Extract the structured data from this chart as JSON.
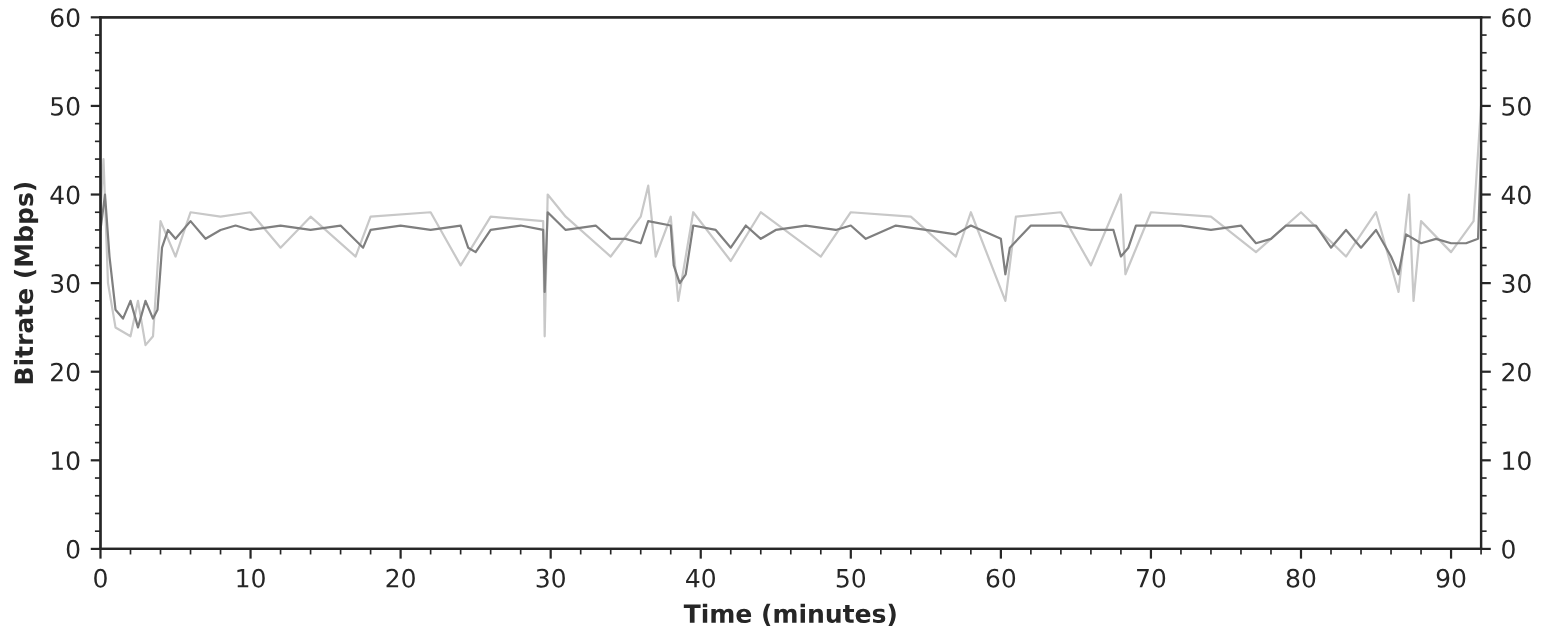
{
  "chart_data": {
    "type": "line",
    "xlabel": "Time (minutes)",
    "ylabel": "Bitrate (Mbps)",
    "xlim": [
      0,
      92
    ],
    "xticks": [
      0,
      10,
      20,
      30,
      40,
      50,
      60,
      70,
      80,
      90
    ],
    "ylim": [
      0,
      60
    ],
    "yticks": [
      0,
      10,
      20,
      30,
      40,
      50,
      60
    ],
    "y2lim": [
      0,
      60
    ],
    "y2ticks": [
      0,
      10,
      20,
      30,
      40,
      50,
      60
    ],
    "grid": false,
    "legend": false,
    "marker": "none",
    "line_style": "solid",
    "series": [
      {
        "color": "#c8c8c8",
        "x": [
          0,
          0.2,
          0.5,
          1,
          2,
          2.5,
          3,
          3.5,
          4,
          5,
          6,
          8,
          10,
          12,
          14,
          17,
          18,
          22,
          24,
          26,
          29.5,
          29.6,
          29.8,
          31,
          34,
          36,
          36.5,
          37,
          38,
          38.5,
          39.5,
          42,
          44,
          48,
          50,
          54,
          57,
          58,
          60.3,
          61,
          64,
          66,
          68,
          68.3,
          70,
          74,
          77,
          80,
          83,
          85,
          86.5,
          87.2,
          87.5,
          88,
          90,
          91.5,
          92
        ],
        "values": [
          38,
          44,
          30,
          25,
          24,
          28,
          23,
          24,
          37,
          33,
          38,
          37.5,
          38,
          34,
          37.5,
          33,
          37.5,
          38,
          32,
          37.5,
          37,
          24,
          40,
          37.5,
          33,
          37.5,
          41,
          33,
          37.5,
          28,
          38,
          32.5,
          38,
          33,
          38,
          37.5,
          33,
          38,
          28,
          37.5,
          38,
          32,
          40,
          31,
          38,
          37.5,
          33.5,
          38,
          33,
          38,
          29,
          40,
          28,
          37,
          33.5,
          37,
          50
        ]
      },
      {
        "color": "#7f7f7f",
        "x": [
          0,
          0.3,
          0.6,
          1,
          1.5,
          2,
          2.5,
          3,
          3.5,
          3.8,
          4.1,
          4.5,
          5,
          6,
          7,
          8,
          9,
          10,
          12,
          14,
          16,
          17.5,
          18,
          20,
          22,
          24,
          24.5,
          25,
          26,
          28,
          29.5,
          29.6,
          29.8,
          31,
          33,
          34,
          35,
          36,
          36.5,
          38,
          38.2,
          38.6,
          39,
          39.5,
          41,
          42,
          43,
          44,
          45,
          47,
          49,
          50,
          51,
          53,
          55,
          57,
          58,
          60,
          60.3,
          60.6,
          62,
          64,
          66,
          67.5,
          68,
          68.5,
          69,
          72,
          74,
          76,
          77,
          78,
          79,
          81,
          82,
          83,
          84,
          85,
          86,
          86.5,
          87,
          88,
          89,
          90,
          91,
          91.8,
          92
        ],
        "values": [
          36,
          40,
          33,
          27,
          26,
          28,
          25,
          28,
          26,
          27,
          34,
          36,
          35,
          37,
          35,
          36,
          36.5,
          36,
          36.5,
          36,
          36.5,
          34,
          36,
          36.5,
          36,
          36.5,
          34,
          33.5,
          36,
          36.5,
          36,
          29,
          38,
          36,
          36.5,
          35,
          35,
          34.5,
          37,
          36.5,
          32,
          30,
          31,
          36.5,
          36,
          34,
          36.5,
          35,
          36,
          36.5,
          36,
          36.5,
          35,
          36.5,
          36,
          35.5,
          36.5,
          35,
          31,
          34,
          36.5,
          36.5,
          36,
          36,
          33,
          34,
          36.5,
          36.5,
          36,
          36.5,
          34.5,
          35,
          36.5,
          36.5,
          34,
          36,
          34,
          36,
          33,
          31,
          35.5,
          34.5,
          35,
          34.5,
          34.5,
          35,
          45
        ]
      }
    ]
  }
}
